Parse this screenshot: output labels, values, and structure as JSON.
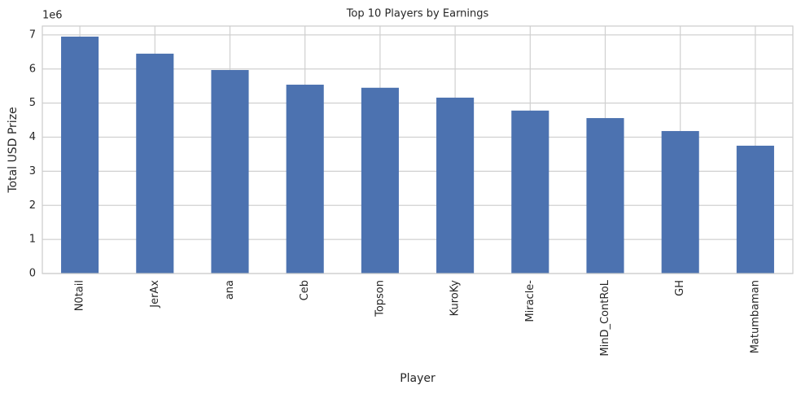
{
  "chart_data": {
    "type": "bar",
    "title": "Top 10 Players by Earnings",
    "x_label": "Player",
    "y_label": "Total USD Prize",
    "y_offset_label": "1e6",
    "categories": [
      "N0tail",
      "JerAx",
      "ana",
      "Ceb",
      "Topson",
      "KuroKy",
      "Miracle-",
      "MinD_ContRoL",
      "GH",
      "Matumbaman"
    ],
    "values": [
      6.95,
      6.45,
      5.97,
      5.54,
      5.45,
      5.16,
      4.78,
      4.56,
      4.18,
      3.75
    ],
    "color": "#4c72b0",
    "ylim": [
      0,
      7.26
    ],
    "yticks": [
      0,
      1,
      2,
      3,
      4,
      5,
      6,
      7
    ],
    "grid": true
  }
}
